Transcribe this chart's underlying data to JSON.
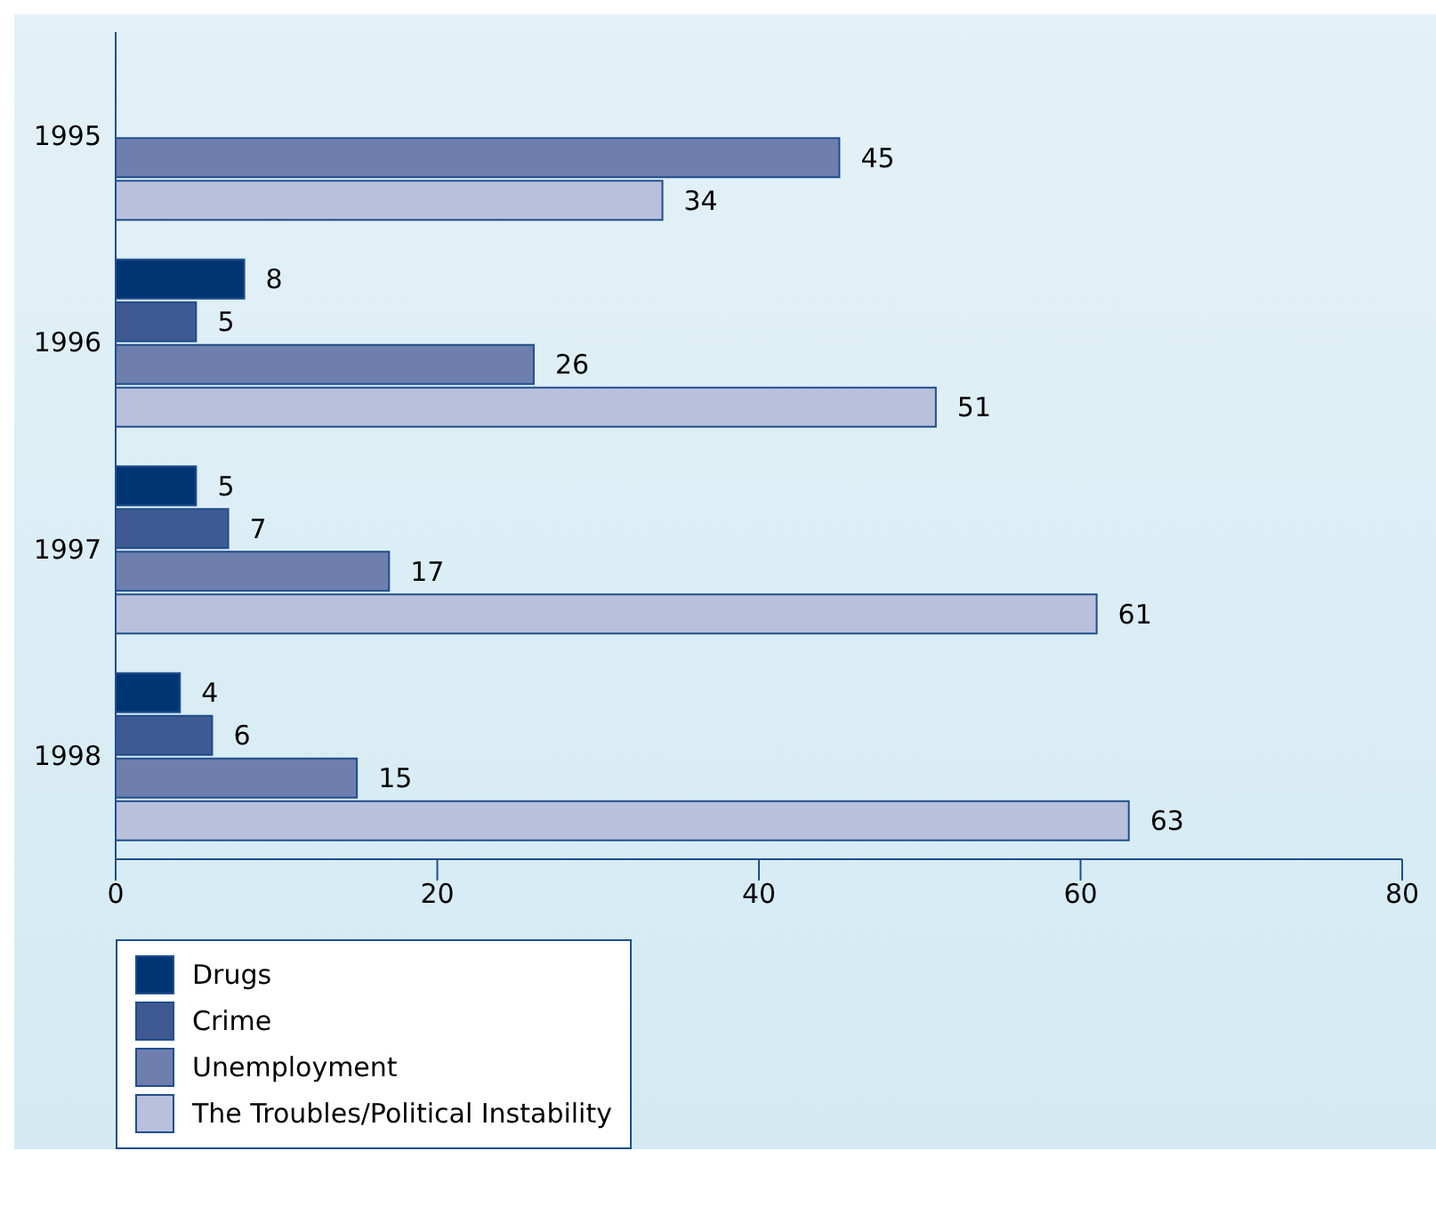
{
  "chart_data": {
    "type": "bar",
    "orientation": "horizontal",
    "categories": [
      "1995",
      "1996",
      "1997",
      "1998"
    ],
    "series": [
      {
        "name": "Drugs",
        "color": "#003574",
        "values": [
          null,
          8,
          5,
          4
        ]
      },
      {
        "name": "Crime",
        "color": "#3f5a92",
        "values": [
          null,
          5,
          7,
          6
        ]
      },
      {
        "name": "Unemployment",
        "color": "#6e7fae",
        "values": [
          45,
          26,
          17,
          15
        ]
      },
      {
        "name": "The Troubles/Political Instability",
        "color": "#b8c0dc",
        "values": [
          34,
          51,
          61,
          63
        ]
      }
    ],
    "xlim": [
      0,
      80
    ],
    "xticks": [
      0,
      20,
      40,
      60,
      80
    ],
    "data_labels": true,
    "grid": false,
    "legend": "bottom left"
  }
}
